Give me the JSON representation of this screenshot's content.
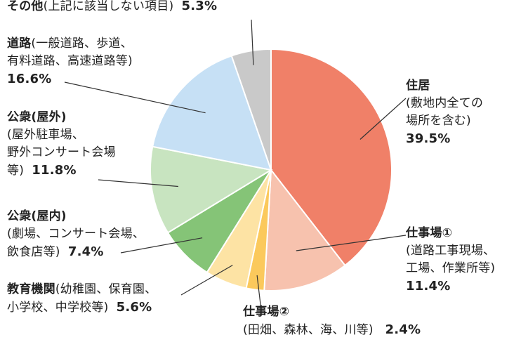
{
  "chart_data": {
    "type": "pie",
    "title": "",
    "start_angle_deg": 0,
    "direction": "clockwise",
    "slice_border_color": "#ffffff",
    "slices": [
      {
        "name": "住居",
        "detail": "(敷地内全ての\n場所を含む)",
        "value": 39.5,
        "value_label": "39.5%",
        "color": "#f08068"
      },
      {
        "name": "仕事場①",
        "detail": "(道路工事現場、\n工場、作業所等)",
        "value": 11.4,
        "value_label": "11.4%",
        "color": "#f7c2ae"
      },
      {
        "name": "仕事場②",
        "detail": "(田畑、森林、海、川等)",
        "value": 2.4,
        "value_label": "2.4%",
        "color": "#fbc95c"
      },
      {
        "name": "教育機関",
        "detail": "(幼稚園、保育園、\n小学校、中学校等)",
        "value": 5.6,
        "value_label": "5.6%",
        "color": "#fde3a4"
      },
      {
        "name": "公衆(屋内)",
        "detail": "(劇場、コンサート会場、\n飲食店等)",
        "value": 7.4,
        "value_label": "7.4%",
        "color": "#85c477"
      },
      {
        "name": "公衆(屋外)",
        "detail": "(屋外駐車場、\n野外コンサート会場\n等)",
        "value": 11.8,
        "value_label": "11.8%",
        "color": "#c8e4c0"
      },
      {
        "name": "道路",
        "detail": "(一般道路、歩道、\n有料道路、高速道路等)",
        "value": 16.6,
        "value_label": "16.6%",
        "color": "#c6e0f5"
      },
      {
        "name": "その他",
        "detail": "(上記に該当しない項目)",
        "value": 5.3,
        "value_label": "5.3%",
        "color": "#c9c9c9"
      }
    ]
  }
}
